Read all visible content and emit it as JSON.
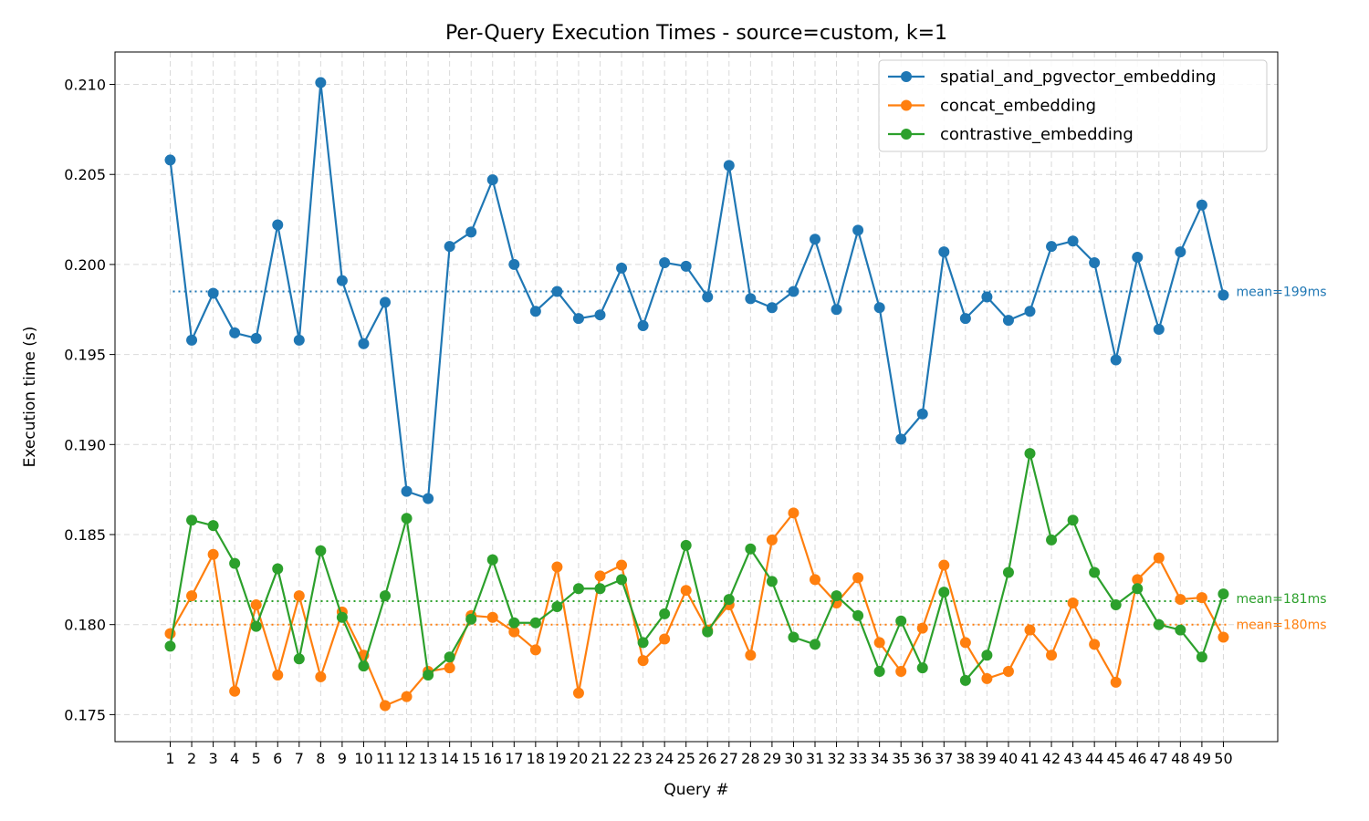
{
  "chart_data": {
    "type": "line",
    "title": "Per-Query Execution Times - source=custom, k=1",
    "xlabel": "Query #",
    "ylabel": "Execution time (s)",
    "ylim": [
      0.1735,
      0.2118
    ],
    "yticks": [
      "0.175",
      "0.180",
      "0.185",
      "0.190",
      "0.195",
      "0.200",
      "0.205",
      "0.210"
    ],
    "grid": true,
    "legend_position": "top-right",
    "x": [
      1,
      2,
      3,
      4,
      5,
      6,
      7,
      8,
      9,
      10,
      11,
      12,
      13,
      14,
      15,
      16,
      17,
      18,
      19,
      20,
      21,
      22,
      23,
      24,
      25,
      26,
      27,
      28,
      29,
      30,
      31,
      32,
      33,
      34,
      35,
      36,
      37,
      38,
      39,
      40,
      41,
      42,
      43,
      44,
      45,
      46,
      47,
      48,
      49,
      50
    ],
    "series": [
      {
        "name": "spatial_and_pgvector_embedding",
        "color": "#1f77b4",
        "mean_label": "mean=199ms",
        "mean": 0.1985,
        "values": [
          0.2058,
          0.1958,
          0.1984,
          0.1962,
          0.1959,
          0.2022,
          0.1958,
          0.2101,
          0.1991,
          0.1956,
          0.1979,
          0.1874,
          0.187,
          0.201,
          0.2018,
          0.2047,
          0.2,
          0.1974,
          0.1985,
          0.197,
          0.1972,
          0.1998,
          0.1966,
          0.2001,
          0.1999,
          0.1982,
          0.2055,
          0.1981,
          0.1976,
          0.1985,
          0.2014,
          0.1975,
          0.2019,
          0.1976,
          0.1903,
          0.1917,
          0.2007,
          0.197,
          0.1982,
          0.1969,
          0.1974,
          0.201,
          0.2013,
          0.2001,
          0.1947,
          0.2004,
          0.1964,
          0.2007,
          0.2033,
          0.1983
        ]
      },
      {
        "name": "concat_embedding",
        "color": "#ff7f0e",
        "mean_label": "mean=180ms",
        "mean": 0.18,
        "values": [
          0.1795,
          0.1816,
          0.1839,
          0.1763,
          0.1811,
          0.1772,
          0.1816,
          0.1771,
          0.1807,
          0.1783,
          0.1755,
          0.176,
          0.1774,
          0.1776,
          0.1805,
          0.1804,
          0.1796,
          0.1786,
          0.1832,
          0.1762,
          0.1827,
          0.1833,
          0.178,
          0.1792,
          0.1819,
          0.1797,
          0.1811,
          0.1783,
          0.1847,
          0.1862,
          0.1825,
          0.1812,
          0.1826,
          0.179,
          0.1774,
          0.1798,
          0.1833,
          0.179,
          0.177,
          0.1774,
          0.1797,
          0.1783,
          0.1812,
          0.1789,
          0.1768,
          0.1825,
          0.1837,
          0.1814,
          0.1815,
          0.1793
        ]
      },
      {
        "name": "contrastive_embedding",
        "color": "#2ca02c",
        "mean_label": "mean=181ms",
        "mean": 0.1813,
        "values": [
          0.1788,
          0.1858,
          0.1855,
          0.1834,
          0.1799,
          0.1831,
          0.1781,
          0.1841,
          0.1804,
          0.1777,
          0.1816,
          0.1859,
          0.1772,
          0.1782,
          0.1803,
          0.1836,
          0.1801,
          0.1801,
          0.181,
          0.182,
          0.182,
          0.1825,
          0.179,
          0.1806,
          0.1844,
          0.1796,
          0.1814,
          0.1842,
          0.1824,
          0.1793,
          0.1789,
          0.1816,
          0.1805,
          0.1774,
          0.1802,
          0.1776,
          0.1818,
          0.1769,
          0.1783,
          0.1829,
          0.1895,
          0.1847,
          0.1858,
          0.1829,
          0.1811,
          0.182,
          0.18,
          0.1797,
          0.1782,
          0.1817
        ]
      }
    ]
  }
}
